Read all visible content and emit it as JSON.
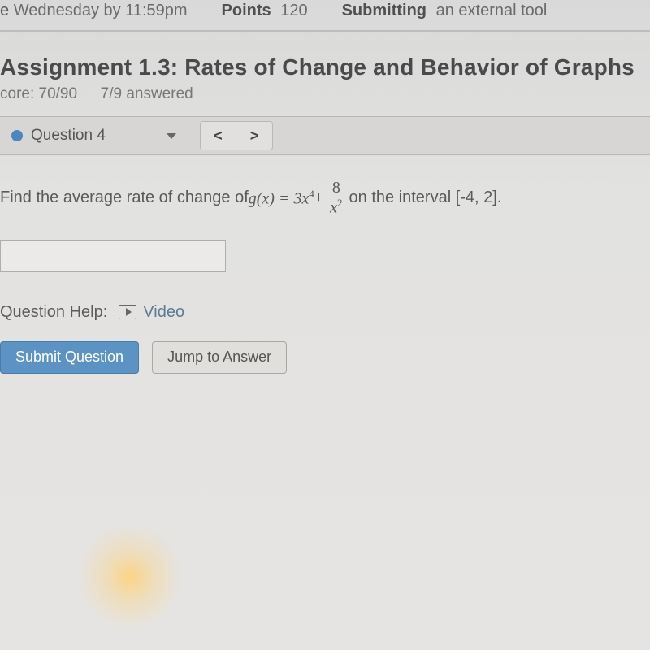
{
  "topbar": {
    "due_label_prefix": "e",
    "due_value": "Wednesday by 11:59pm",
    "points_label": "Points",
    "points_value": "120",
    "submitting_label": "Submitting",
    "submitting_value": "an external tool"
  },
  "assignment": {
    "title": "Assignment 1.3: Rates of Change and Behavior of Graphs",
    "score_label": "core: 70/90",
    "answered_label": "7/9 answered"
  },
  "question_nav": {
    "current_label": "Question 4",
    "prev_symbol": "<",
    "next_symbol": ">",
    "dot_color": "#4b86c2"
  },
  "prompt": {
    "text_before": "Find the average rate of change of ",
    "func": "g(x) = 3x",
    "exp1": "4",
    "plus": " + ",
    "frac_num": "8",
    "frac_den_var": "x",
    "frac_den_exp": "2",
    "text_after": " on the interval [-4, 2]."
  },
  "help": {
    "label": "Question Help:",
    "video_label": "Video"
  },
  "buttons": {
    "submit": "Submit Question",
    "jump": "Jump to Answer"
  },
  "colors": {
    "primary_btn_bg": "#5b93c4",
    "primary_btn_text": "#ffffff",
    "link_color": "#5b7b95",
    "body_text": "#555555"
  }
}
